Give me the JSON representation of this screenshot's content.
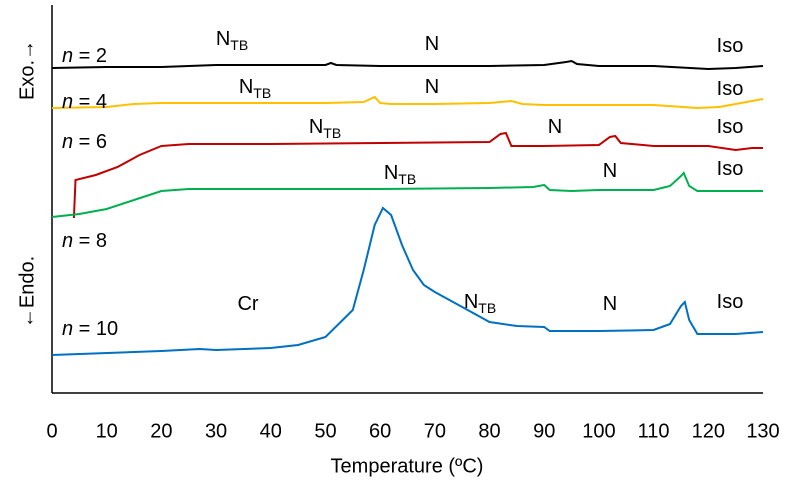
{
  "chart_data": {
    "type": "line",
    "x_label": "Temperature (ºC)",
    "y_label_top": "Exo.→",
    "y_label_bottom": "←Endo.",
    "xlim": [
      0,
      130
    ],
    "xticks": [
      0,
      10,
      20,
      30,
      40,
      50,
      60,
      70,
      80,
      90,
      100,
      110,
      120,
      130
    ],
    "ylim": [
      0,
      388
    ],
    "series": [
      {
        "name": "n = 2",
        "color": "#000000",
        "x": [
          0,
          10,
          20,
          30,
          40,
          50,
          51,
          52,
          60,
          70,
          80,
          90,
          94,
          95,
          96,
          100,
          110,
          120,
          125,
          130
        ],
        "values": [
          325,
          326,
          326,
          328,
          328,
          328,
          330,
          328,
          327,
          327,
          327,
          328,
          331,
          332,
          329,
          327,
          327,
          324,
          325,
          327
        ]
      },
      {
        "name": "n = 4",
        "color": "#ffc000",
        "x": [
          0,
          10,
          15,
          20,
          30,
          40,
          50,
          57,
          59,
          60,
          62,
          70,
          80,
          84,
          86,
          90,
          100,
          110,
          118,
          122,
          126,
          130
        ],
        "values": [
          285,
          286,
          289,
          290,
          290,
          290,
          290,
          291,
          296,
          290,
          289,
          289,
          290,
          292,
          289,
          288,
          288,
          288,
          285,
          286,
          290,
          294
        ]
      },
      {
        "name": "n = 6",
        "color": "#c00000",
        "x": [
          4,
          4.3,
          8,
          12,
          16,
          20,
          25,
          40,
          60,
          80,
          82,
          83,
          84,
          90,
          100,
          102,
          103,
          104,
          110,
          120,
          125,
          128,
          130
        ],
        "values": [
          175,
          213,
          218,
          226,
          238,
          247,
          249,
          249,
          250,
          251,
          259,
          260,
          247,
          247,
          248,
          256,
          257,
          250,
          247,
          247,
          243,
          245,
          245
        ]
      },
      {
        "name": "n = 8",
        "color": "#00b050",
        "x": [
          0,
          5,
          10,
          15,
          20,
          25,
          40,
          60,
          80,
          88,
          90,
          91,
          95,
          100,
          110,
          113,
          115,
          115.5,
          116.5,
          118,
          125,
          130
        ],
        "values": [
          176,
          179,
          184,
          193,
          202,
          204,
          204,
          204,
          205,
          206,
          208,
          203,
          202,
          203,
          203,
          207,
          217,
          220,
          207,
          202,
          202,
          202
        ]
      },
      {
        "name": "n = 10",
        "color": "#0070c0",
        "x": [
          0,
          20,
          27,
          30,
          40,
          45,
          50,
          55,
          57,
          59,
          60.5,
          62,
          64,
          66,
          68,
          70,
          75,
          80,
          85,
          90,
          91,
          100,
          110,
          113,
          115,
          115.7,
          116.5,
          118,
          125,
          130
        ],
        "values": [
          38,
          42,
          44,
          43,
          45,
          48,
          56,
          83,
          123,
          168,
          185,
          178,
          148,
          123,
          108,
          101,
          86,
          71,
          67,
          66,
          62,
          62,
          63,
          69,
          87,
          91,
          73,
          59,
          59,
          61
        ]
      }
    ],
    "annotations": [
      {
        "text": "N",
        "sub": "TB"
      },
      {
        "text": "N"
      },
      {
        "text": "Iso"
      },
      {
        "text": "N",
        "sub": "TB"
      },
      {
        "text": "N"
      },
      {
        "text": "Iso"
      },
      {
        "text": "N",
        "sub": "TB"
      },
      {
        "text": "N"
      },
      {
        "text": "Iso"
      },
      {
        "text": "N",
        "sub": "TB"
      },
      {
        "text": "N"
      },
      {
        "text": "Iso"
      },
      {
        "text": "Cr"
      },
      {
        "text": "N",
        "sub": "TB"
      },
      {
        "text": "N"
      },
      {
        "text": "Iso"
      }
    ]
  }
}
